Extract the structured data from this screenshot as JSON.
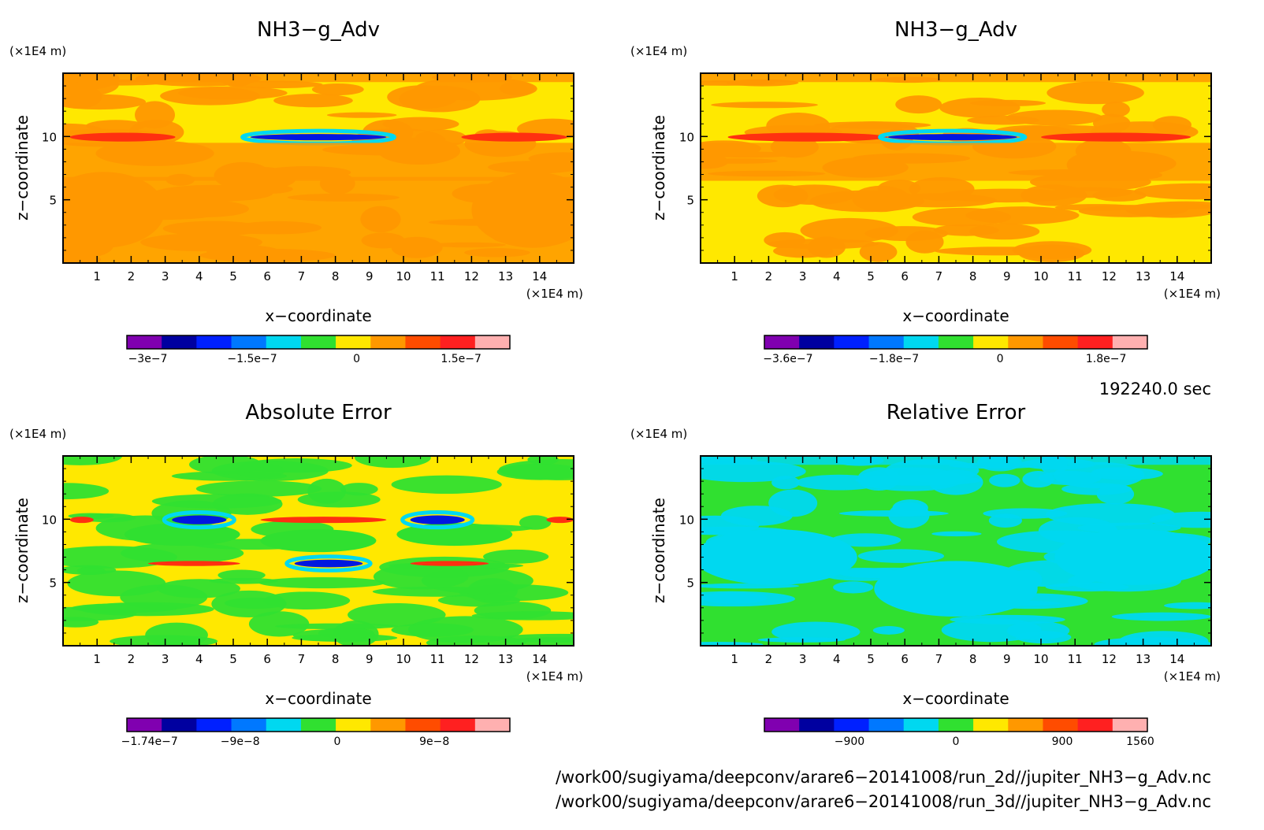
{
  "chart_data": [
    {
      "type": "heatmap",
      "title": "NH3−g_Adv",
      "xlabel": "x−coordinate",
      "ylabel": "z−coordinate",
      "x_unit": "(×1E4 m)",
      "y_unit": "(×1E4 m)",
      "xlim": [
        0,
        15
      ],
      "ylim": [
        0,
        15
      ],
      "x_ticks": [
        "1",
        "2",
        "3",
        "4",
        "5",
        "6",
        "7",
        "8",
        "9",
        "10",
        "11",
        "12",
        "13",
        "14"
      ],
      "y_ticks": [
        "5",
        "10"
      ],
      "colorbar": {
        "colors": [
          "#8000b0",
          "#0000a0",
          "#0020ff",
          "#0078ff",
          "#00d8f0",
          "#30e030",
          "#ffe800",
          "#ff9800",
          "#ff4c00",
          "#ff2020",
          "#ffb0b0"
        ],
        "labels": [
          "−3e−7",
          "−1.5e−7",
          "0",
          "1.5e−7"
        ],
        "label_values": [
          -3e-07,
          -1.5e-07,
          0,
          1.5e-07
        ],
        "vmin": -3.3e-07,
        "vmax": 2.2e-07
      },
      "fields": {
        "background": "yellow",
        "bands": [
          {
            "name": "top",
            "z": [
              14.3,
              15
            ],
            "level": "orange"
          },
          {
            "name": "upper-red",
            "z": [
              9.6,
              10.3
            ],
            "level": "red",
            "x_ranges": [
              [
                0.2,
                3.3
              ],
              [
                11.7,
                14.8
              ]
            ]
          },
          {
            "name": "upper-blue",
            "z": [
              9.7,
              10.2
            ],
            "level": "blue",
            "x_ranges": [
              [
                5.5,
                9.5
              ]
            ]
          },
          {
            "name": "mid-orange",
            "z": [
              6.5,
              9.5
            ],
            "level": "orange"
          },
          {
            "name": "low-orange",
            "z": [
              0,
              6.8
            ],
            "level": "orange"
          }
        ]
      }
    },
    {
      "type": "heatmap",
      "title": "NH3−g_Adv",
      "xlabel": "x−coordinate",
      "ylabel": "z−coordinate",
      "x_unit": "(×1E4 m)",
      "y_unit": "(×1E4 m)",
      "xlim": [
        0,
        15
      ],
      "ylim": [
        0,
        15
      ],
      "x_ticks": [
        "1",
        "2",
        "3",
        "4",
        "5",
        "6",
        "7",
        "8",
        "9",
        "10",
        "11",
        "12",
        "13",
        "14"
      ],
      "y_ticks": [
        "5",
        "10"
      ],
      "colorbar": {
        "colors": [
          "#8000b0",
          "#0000a0",
          "#0020ff",
          "#0078ff",
          "#00d8f0",
          "#30e030",
          "#ffe800",
          "#ff9800",
          "#ff4c00",
          "#ff2020",
          "#ffb0b0"
        ],
        "labels": [
          "−3.6e−7",
          "−1.8e−7",
          "0",
          "1.8e−7"
        ],
        "label_values": [
          -3.6e-07,
          -1.8e-07,
          0,
          1.8e-07
        ],
        "vmin": -4e-07,
        "vmax": 2.5e-07
      },
      "fields": {
        "background": "yellow",
        "bands": [
          {
            "name": "top",
            "z": [
              14.3,
              15
            ],
            "level": "orange"
          },
          {
            "name": "upper-red",
            "z": [
              9.6,
              10.3
            ],
            "level": "red",
            "x_ranges": [
              [
                0.8,
                5.5
              ],
              [
                10.0,
                14.4
              ]
            ]
          },
          {
            "name": "upper-blue",
            "z": [
              9.7,
              10.2
            ],
            "level": "blue",
            "x_ranges": [
              [
                5.5,
                9.3
              ]
            ]
          },
          {
            "name": "mid-orange",
            "z": [
              6.5,
              9.5
            ],
            "level": "orange"
          }
        ]
      }
    },
    {
      "type": "heatmap",
      "title": "Absolute Error",
      "xlabel": "x−coordinate",
      "ylabel": "z−coordinate",
      "x_unit": "(×1E4 m)",
      "y_unit": "(×1E4 m)",
      "xlim": [
        0,
        15
      ],
      "ylim": [
        0,
        15
      ],
      "x_ticks": [
        "1",
        "2",
        "3",
        "4",
        "5",
        "6",
        "7",
        "8",
        "9",
        "10",
        "11",
        "12",
        "13",
        "14"
      ],
      "y_ticks": [
        "5",
        "10"
      ],
      "colorbar": {
        "colors": [
          "#8000b0",
          "#0000a0",
          "#0020ff",
          "#0078ff",
          "#00d8f0",
          "#30e030",
          "#ffe800",
          "#ff9800",
          "#ff4c00",
          "#ff2020",
          "#ffb0b0"
        ],
        "labels": [
          "−1.74e−7",
          "−9e−8",
          "0",
          "9e−8"
        ],
        "label_values": [
          -1.74e-07,
          -9e-08,
          0,
          9e-08
        ],
        "vmin": -1.95e-07,
        "vmax": 1.6e-07
      },
      "fields": {
        "background": "yellow",
        "bands": [
          {
            "name": "upper-blue",
            "z": [
              9.6,
              10.3
            ],
            "level": "blue",
            "x_ranges": [
              [
                3.2,
                4.8
              ],
              [
                10.2,
                11.8
              ]
            ]
          },
          {
            "name": "upper-red",
            "z": [
              9.7,
              10.2
            ],
            "level": "red",
            "x_ranges": [
              [
                5.8,
                9.5
              ],
              [
                0.2,
                0.9
              ],
              [
                14.2,
                15
              ]
            ]
          },
          {
            "name": "mid-blue",
            "z": [
              6.2,
              6.8
            ],
            "level": "blue",
            "x_ranges": [
              [
                6.8,
                8.8
              ]
            ]
          },
          {
            "name": "mid-red",
            "z": [
              6.3,
              6.7
            ],
            "level": "red",
            "x_ranges": [
              [
                2.5,
                5.2
              ],
              [
                10.2,
                12.5
              ]
            ]
          }
        ]
      }
    },
    {
      "type": "heatmap",
      "title": "Relative Error",
      "xlabel": "x−coordinate",
      "ylabel": "z−coordinate",
      "x_unit": "(×1E4 m)",
      "y_unit": "(×1E4 m)",
      "xlim": [
        0,
        15
      ],
      "ylim": [
        0,
        15
      ],
      "x_ticks": [
        "1",
        "2",
        "3",
        "4",
        "5",
        "6",
        "7",
        "8",
        "9",
        "10",
        "11",
        "12",
        "13",
        "14"
      ],
      "y_ticks": [
        "5",
        "10"
      ],
      "colorbar": {
        "colors": [
          "#8000b0",
          "#0000a0",
          "#0020ff",
          "#0078ff",
          "#00d8f0",
          "#30e030",
          "#ffe800",
          "#ff9800",
          "#ff4c00",
          "#ff2020",
          "#ffb0b0"
        ],
        "labels": [
          "−900",
          "0",
          "900",
          "1560"
        ],
        "label_values": [
          -900,
          0,
          900,
          1560
        ],
        "vmin": -1620,
        "vmax": 1620
      },
      "fields": {
        "background": "green",
        "bands": [
          {
            "name": "top",
            "z": [
              14.3,
              15
            ],
            "level": "cyan"
          }
        ]
      }
    }
  ],
  "info": {
    "time": "192240.0 sec",
    "file1": "/work00/sugiyama/deepconv/arare6−20141008/run_2d//jupiter_NH3−g_Adv.nc",
    "file2": "/work00/sugiyama/deepconv/arare6−20141008/run_3d//jupiter_NH3−g_Adv.nc"
  }
}
